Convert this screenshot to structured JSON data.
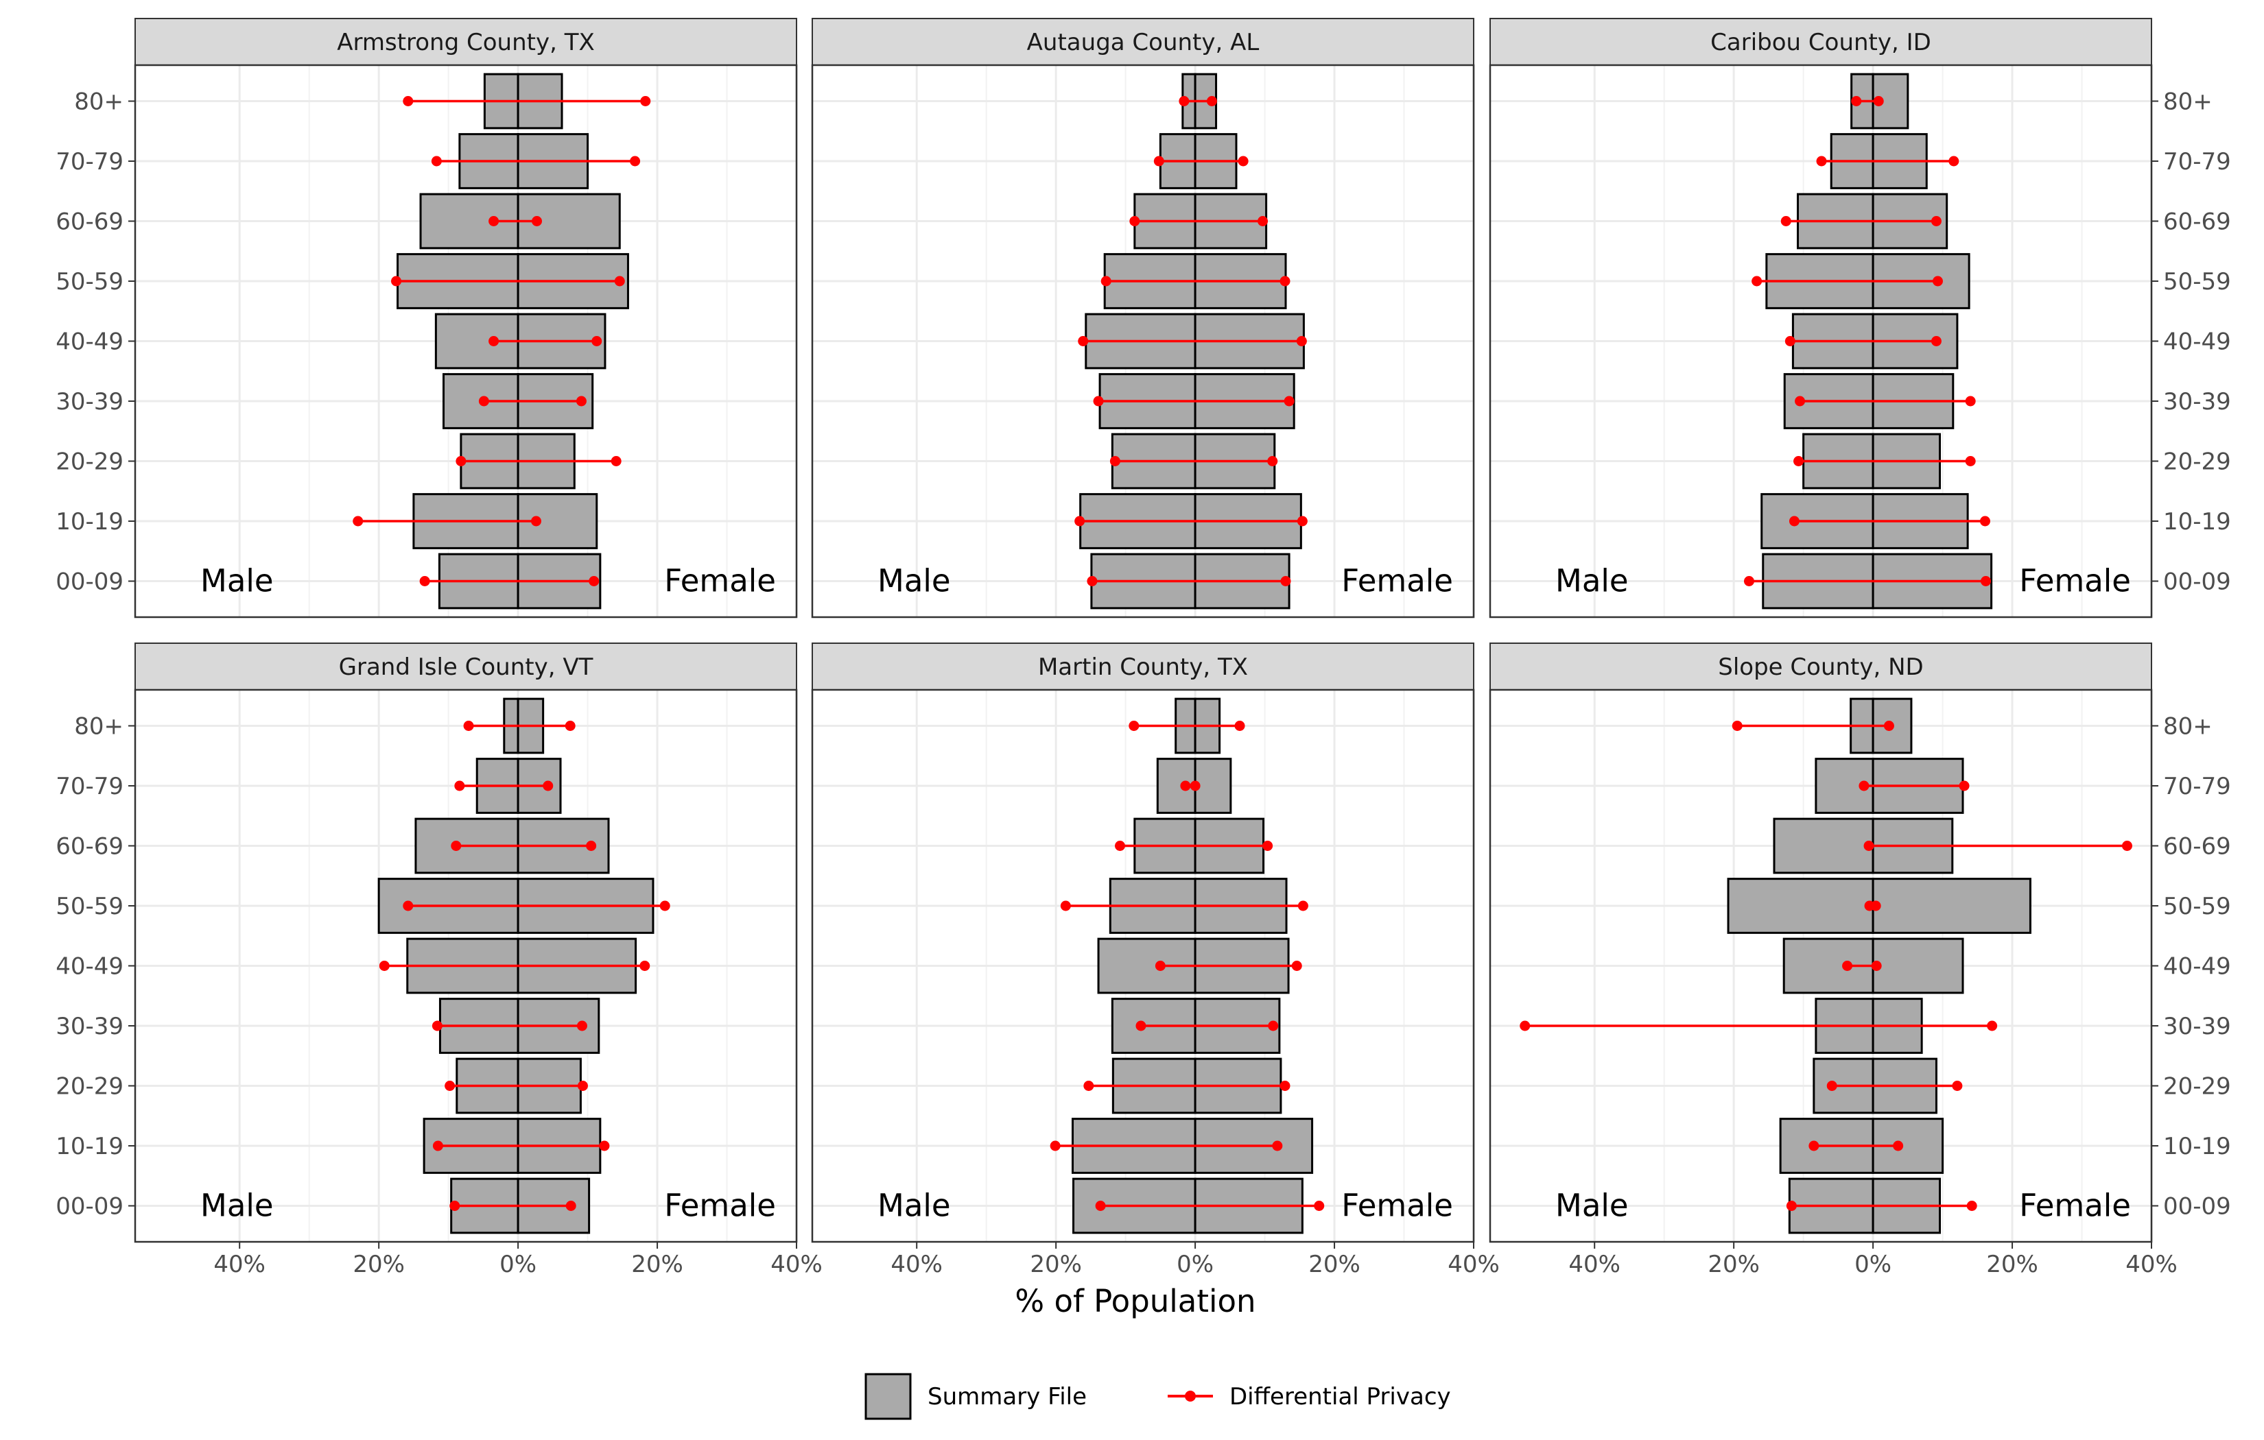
{
  "chart_data": {
    "type": "bar",
    "xlabel": "% of Population",
    "x_tick_labels": [
      "40%",
      "20%",
      "0%",
      "20%",
      "40%"
    ],
    "x_tick_values": [
      -40,
      -20,
      0,
      20,
      40
    ],
    "xlim": [
      -55,
      40
    ],
    "categories": [
      "00-09",
      "10-19",
      "20-29",
      "30-39",
      "40-49",
      "50-59",
      "60-69",
      "70-79",
      "80+"
    ],
    "sex_labels": {
      "left": "Male",
      "right": "Female"
    },
    "grid": true,
    "legend_position": "bottom",
    "legend": [
      {
        "name": "Summary File",
        "color": "#aaaaaa"
      },
      {
        "name": "Differential Privacy",
        "color": "#ff0000"
      }
    ],
    "panels": [
      {
        "title": "Armstrong County, TX",
        "summary_male": [
          -11.3,
          -15,
          -8.2,
          -10.7,
          -11.8,
          -17.3,
          -14,
          -8.4,
          -4.8
        ],
        "summary_female": [
          11.8,
          11.3,
          8.1,
          10.7,
          12.5,
          15.8,
          14.6,
          10,
          6.3
        ],
        "dp_male": [
          -13.4,
          -23,
          -8.2,
          -4.9,
          -3.5,
          -17.5,
          -3.5,
          -11.7,
          -15.8
        ],
        "dp_female": [
          10.9,
          2.6,
          14.1,
          9.1,
          11.3,
          14.6,
          2.7,
          16.8,
          18.3
        ]
      },
      {
        "title": "Autauga County, AL",
        "summary_male": [
          -14.9,
          -16.5,
          -11.9,
          -13.7,
          -15.7,
          -13,
          -8.7,
          -5,
          -1.8
        ],
        "summary_female": [
          13.5,
          15.2,
          11.4,
          14.2,
          15.6,
          13,
          10.2,
          5.9,
          3
        ],
        "dp_male": [
          -14.8,
          -16.6,
          -11.5,
          -13.9,
          -16.1,
          -12.8,
          -8.7,
          -5.2,
          -1.6
        ],
        "dp_female": [
          13,
          15.4,
          11.1,
          13.5,
          15.3,
          12.9,
          9.7,
          6.9,
          2.4
        ]
      },
      {
        "title": "Caribou County, ID",
        "summary_male": [
          -15.8,
          -16,
          -10,
          -12.7,
          -11.5,
          -15.3,
          -10.8,
          -6,
          -3.1
        ],
        "summary_female": [
          17,
          13.6,
          9.6,
          11.5,
          12.1,
          13.8,
          10.6,
          7.7,
          5
        ],
        "dp_male": [
          -17.8,
          -11.3,
          -10.7,
          -10.5,
          -11.9,
          -16.7,
          -12.5,
          -7.4,
          -2.4
        ],
        "dp_female": [
          16.2,
          16.1,
          14,
          14,
          9.1,
          9.3,
          9.1,
          11.6,
          0.8
        ]
      },
      {
        "title": "Grand Isle County, VT",
        "summary_male": [
          -9.6,
          -13.5,
          -8.8,
          -11.2,
          -15.9,
          -20,
          -14.7,
          -5.9,
          -2
        ],
        "summary_female": [
          10.2,
          11.8,
          9,
          11.6,
          16.9,
          19.4,
          13,
          6.1,
          3.6
        ],
        "dp_male": [
          -9.1,
          -11.5,
          -9.8,
          -11.6,
          -19.2,
          -15.8,
          -8.9,
          -8.4,
          -7.1
        ],
        "dp_female": [
          7.6,
          12.4,
          9.3,
          9.2,
          18.2,
          21.1,
          10.5,
          4.3,
          7.5
        ]
      },
      {
        "title": "Martin County, TX",
        "summary_male": [
          -17.5,
          -17.6,
          -11.8,
          -11.9,
          -13.9,
          -12.2,
          -8.7,
          -5.4,
          -2.8
        ],
        "summary_female": [
          15.4,
          16.8,
          12.3,
          12.1,
          13.4,
          13.1,
          9.8,
          5.1,
          3.5
        ],
        "dp_male": [
          -13.6,
          -20.1,
          -15.3,
          -7.8,
          -5,
          -18.6,
          -10.8,
          -1.4,
          -8.8
        ],
        "dp_female": [
          17.8,
          11.8,
          12.9,
          11.2,
          14.6,
          15.5,
          10.4,
          0,
          6.4
        ]
      },
      {
        "title": "Slope County, ND",
        "summary_male": [
          -12,
          -13.3,
          -8.5,
          -8.2,
          -12.8,
          -20.8,
          -14.2,
          -8.2,
          -3.2
        ],
        "summary_female": [
          9.6,
          10,
          9.1,
          7,
          12.9,
          22.6,
          11.4,
          12.9,
          5.5
        ],
        "dp_male": [
          -11.7,
          -8.5,
          -5.9,
          -50,
          -3.7,
          -0.5,
          -0.6,
          -1.3,
          -19.5
        ],
        "dp_female": [
          14.2,
          3.6,
          12.1,
          17.1,
          0.5,
          0.4,
          36.5,
          13.1,
          2.3
        ]
      }
    ]
  }
}
